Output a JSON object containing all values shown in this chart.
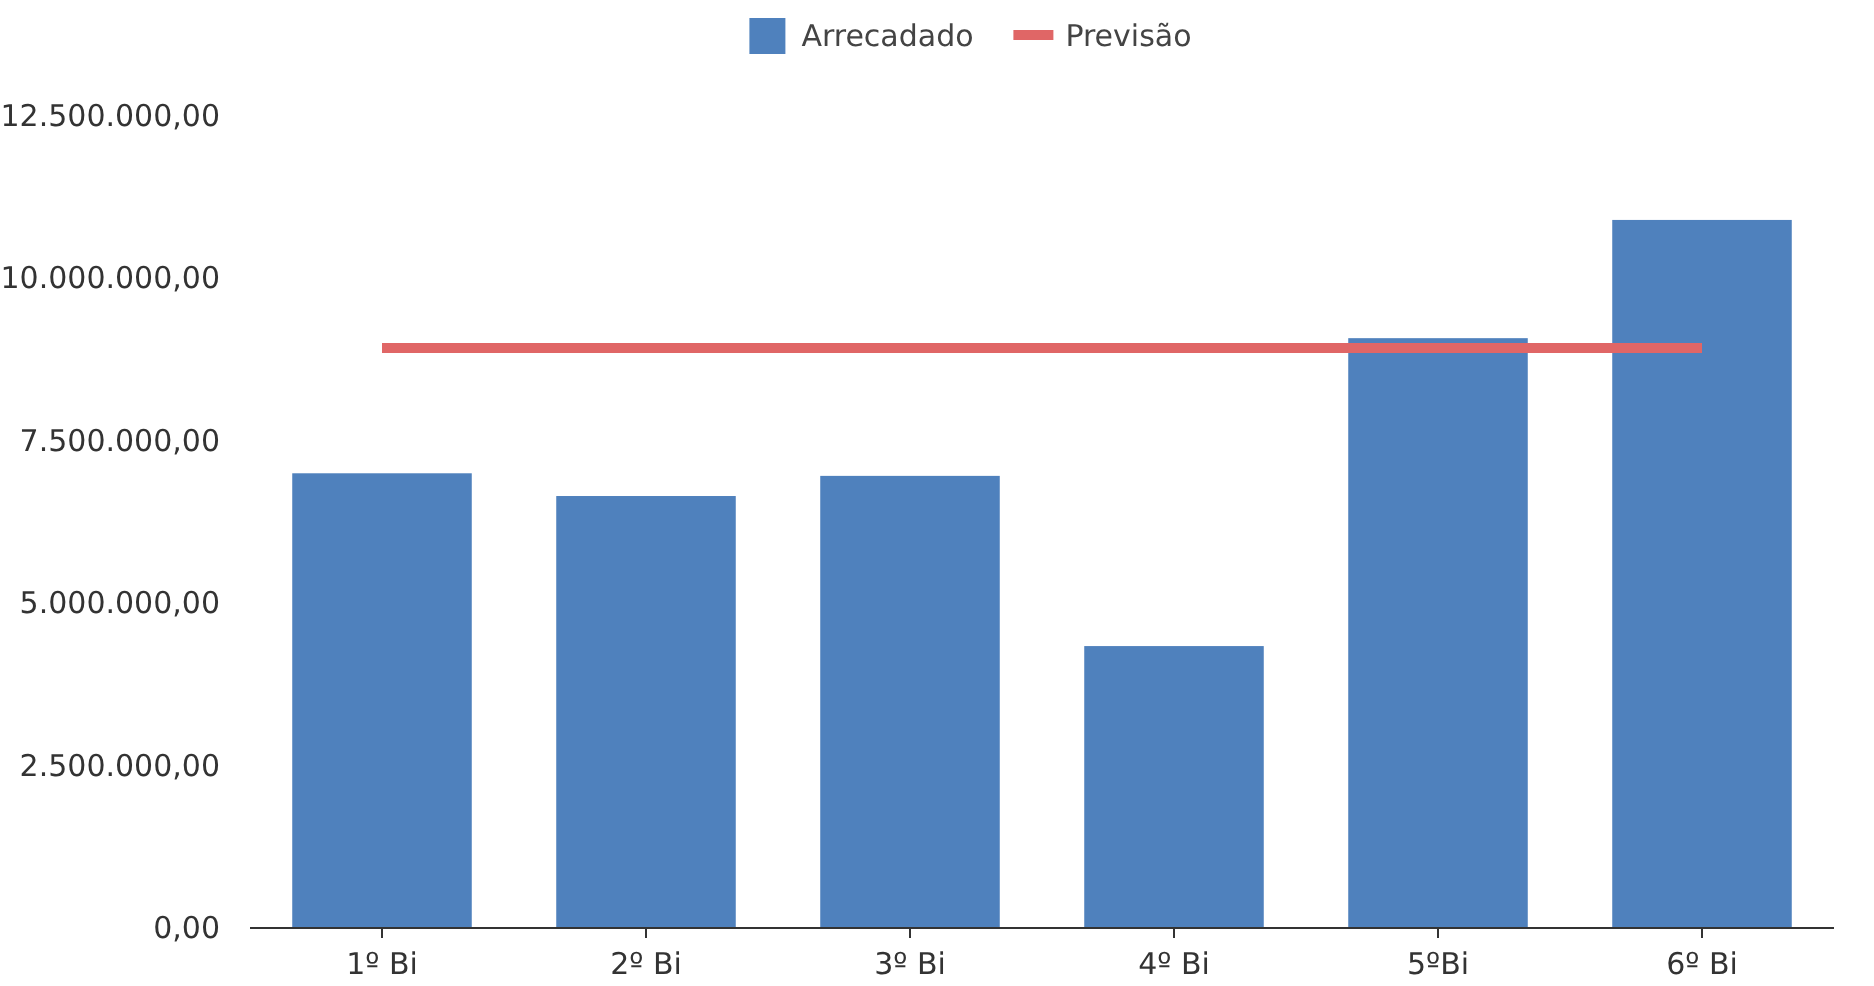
{
  "chart_data": {
    "type": "bar",
    "categories": [
      "1º Bi",
      "2º Bi",
      "3º Bi",
      "4º Bi",
      "5ºBi",
      "6º Bi"
    ],
    "series": [
      {
        "name": "Arrecadado",
        "color": "#4f81bd",
        "values": [
          7000000,
          6650000,
          6960000,
          4340000,
          9080000,
          10900000
        ]
      },
      {
        "name": "Previsão",
        "type": "line",
        "color": "#e06666",
        "values": [
          8930000,
          8930000,
          8930000,
          8930000,
          8930000,
          8930000
        ]
      }
    ],
    "ylim": [
      0,
      12500000
    ],
    "yticks": [
      {
        "value": 0,
        "label": "0,00"
      },
      {
        "value": 2500000,
        "label": "2.500.000,00"
      },
      {
        "value": 5000000,
        "label": "5.000.000,00"
      },
      {
        "value": 7500000,
        "label": "7.500.000,00"
      },
      {
        "value": 10000000,
        "label": "10.000.000,00"
      },
      {
        "value": 12500000,
        "label": "12.500.000,00"
      }
    ],
    "grid": false,
    "legend": "top"
  }
}
